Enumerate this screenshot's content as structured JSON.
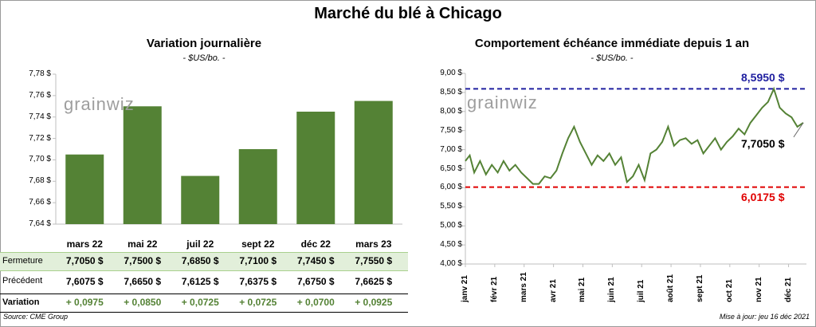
{
  "title": "Marché du blé à Chicago",
  "left": {
    "subtitle": "Variation journalière",
    "unit": "- $US/bo. -",
    "logo": "grainwiz",
    "row_labels": {
      "close": "Fermeture",
      "prev": "Précédent",
      "var": "Variation"
    },
    "columns": [
      {
        "label": "mars 22",
        "close": "7,7050  $",
        "prev": "7,6075  $",
        "var": "+ 0,0975"
      },
      {
        "label": "mai 22",
        "close": "7,7500  $",
        "prev": "7,6650  $",
        "var": "+ 0,0850"
      },
      {
        "label": "juil 22",
        "close": "7,6850  $",
        "prev": "7,6125  $",
        "var": "+ 0,0725"
      },
      {
        "label": "sept 22",
        "close": "7,7100  $",
        "prev": "7,6375  $",
        "var": "+ 0,0725"
      },
      {
        "label": "déc 22",
        "close": "7,7450  $",
        "prev": "7,6750  $",
        "var": "+ 0,0700"
      },
      {
        "label": "mars 23",
        "close": "7,7550  $",
        "prev": "7,6625  $",
        "var": "+ 0,0925"
      }
    ]
  },
  "right": {
    "subtitle": "Comportement  échéance immédiate depuis 1 an",
    "unit": "- $US/bo. -",
    "logo": "grainwiz"
  },
  "footer": {
    "source": "Source: CME Group",
    "updated": "Mise à jour: jeu 16 déc 2021"
  },
  "colors": {
    "bar": "#548235",
    "line": "#548235",
    "max_line": "#2020a0",
    "min_line": "#e00000",
    "table_highlight": "#e2efda",
    "var_text": "#548235"
  },
  "chart_data": [
    {
      "type": "bar",
      "categories": [
        "mars 22",
        "mai 22",
        "juil 22",
        "sept 22",
        "déc 22",
        "mars 23"
      ],
      "values": [
        7.705,
        7.75,
        7.685,
        7.71,
        7.745,
        7.755
      ],
      "ylim": [
        7.64,
        7.78
      ],
      "yticks": [
        "7,64 $",
        "7,66 $",
        "7,68 $",
        "7,70 $",
        "7,72 $",
        "7,74 $",
        "7,76 $",
        "7,78 $"
      ],
      "ytick_values": [
        7.64,
        7.66,
        7.68,
        7.7,
        7.72,
        7.74,
        7.76,
        7.78
      ],
      "grid": false
    },
    {
      "type": "line",
      "x_labels": [
        "janv 21",
        "févr 21",
        "mars 21",
        "avr 21",
        "mai 21",
        "juin 21",
        "juil 21",
        "août 21",
        "sept 21",
        "oct 21",
        "nov 21",
        "déc 21"
      ],
      "x_months": [
        0,
        1,
        2,
        3,
        4,
        5,
        6,
        7,
        8,
        9,
        10,
        11
      ],
      "ylim": [
        4.0,
        9.0
      ],
      "yticks": [
        "4,00 $",
        "4,50 $",
        "5,00 $",
        "5,50 $",
        "6,00 $",
        "6,50 $",
        "7,00 $",
        "7,50 $",
        "8,00 $",
        "8,50 $",
        "9,00 $"
      ],
      "ytick_values": [
        4.0,
        4.5,
        5.0,
        5.5,
        6.0,
        6.5,
        7.0,
        7.5,
        8.0,
        8.5,
        9.0
      ],
      "x": [
        0,
        0.15,
        0.3,
        0.5,
        0.7,
        0.9,
        1.1,
        1.3,
        1.5,
        1.7,
        1.9,
        2.1,
        2.3,
        2.5,
        2.7,
        2.9,
        3.1,
        3.3,
        3.5,
        3.7,
        3.9,
        4.1,
        4.3,
        4.5,
        4.7,
        4.9,
        5.1,
        5.3,
        5.5,
        5.7,
        5.9,
        6.1,
        6.3,
        6.5,
        6.7,
        6.9,
        7.1,
        7.3,
        7.5,
        7.7,
        7.9,
        8.1,
        8.3,
        8.5,
        8.7,
        8.9,
        9.1,
        9.3,
        9.5,
        9.7,
        9.9,
        10.1,
        10.3,
        10.5,
        10.7,
        10.9,
        11.1,
        11.3,
        11.5
      ],
      "y": [
        6.7,
        6.85,
        6.4,
        6.7,
        6.35,
        6.6,
        6.4,
        6.7,
        6.45,
        6.6,
        6.4,
        6.25,
        6.1,
        6.1,
        6.3,
        6.25,
        6.45,
        6.9,
        7.3,
        7.6,
        7.2,
        6.9,
        6.6,
        6.85,
        6.7,
        6.9,
        6.6,
        6.8,
        6.15,
        6.3,
        6.6,
        6.2,
        6.9,
        7.0,
        7.2,
        7.6,
        7.1,
        7.25,
        7.3,
        7.15,
        7.25,
        6.9,
        7.1,
        7.3,
        7.0,
        7.2,
        7.35,
        7.55,
        7.4,
        7.7,
        7.9,
        8.1,
        8.25,
        8.595,
        8.1,
        7.95,
        7.85,
        7.6,
        7.705
      ],
      "annotations": [
        {
          "label": "8,5950 $",
          "value": 8.595,
          "kind": "max"
        },
        {
          "label": "6,0175 $",
          "value": 6.0175,
          "kind": "min"
        },
        {
          "label": "7,7050 $",
          "value": 7.705,
          "kind": "last"
        }
      ],
      "grid": false
    }
  ]
}
